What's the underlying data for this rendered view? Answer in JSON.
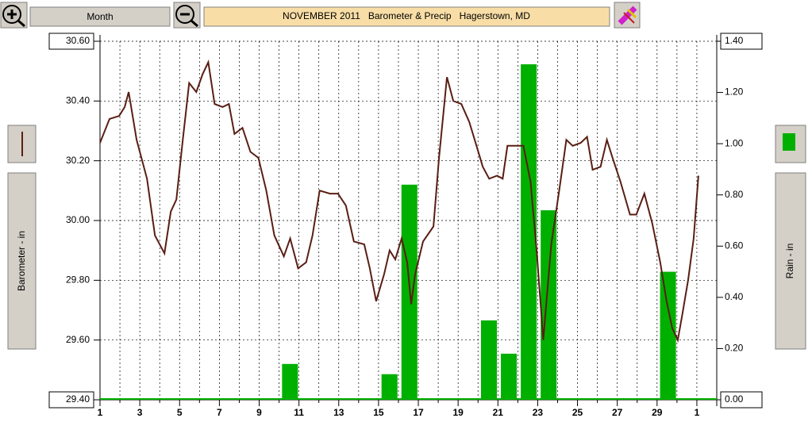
{
  "toolbar": {
    "period_button": "Month"
  },
  "chart_data": {
    "type": "combo",
    "title": "NOVEMBER 2011   Barometer & Precip   Hagerstown, MD",
    "ylabel": "Barometer - in",
    "y2label": "Rain - in",
    "xlim": [
      1,
      32
    ],
    "xticks": [
      1,
      3,
      5,
      7,
      9,
      11,
      13,
      15,
      17,
      19,
      21,
      23,
      25,
      27,
      29,
      {
        "value": 31,
        "label": "1"
      }
    ],
    "xgrid_minor": [
      2,
      4,
      6,
      8,
      10,
      12,
      14,
      16,
      18,
      20,
      22,
      24,
      26,
      28,
      30
    ],
    "ylim": [
      29.4,
      30.6
    ],
    "yticks": [
      {
        "value": 29.4,
        "label": "29.40"
      },
      {
        "value": 29.6,
        "label": "29.60"
      },
      {
        "value": 29.8,
        "label": "29.80"
      },
      {
        "value": 30.0,
        "label": "30.00"
      },
      {
        "value": 30.2,
        "label": "30.20"
      },
      {
        "value": 30.4,
        "label": "30.40"
      },
      {
        "value": 30.6,
        "label": "30.60"
      }
    ],
    "y2lim": [
      0,
      1.4
    ],
    "y2ticks": [
      {
        "value": 0,
        "label": "0.00"
      },
      {
        "value": 0.2,
        "label": "0.20"
      },
      {
        "value": 0.4,
        "label": "0.40"
      },
      {
        "value": 0.6,
        "label": "0.60"
      },
      {
        "value": 0.8,
        "label": "0.80"
      },
      {
        "value": 1.0,
        "label": "1.00"
      },
      {
        "value": 1.2,
        "label": "1.20"
      },
      {
        "value": 1.4,
        "label": "1.40"
      }
    ],
    "grid": true,
    "series": [
      {
        "type": "line",
        "color": "#5a1e14",
        "x": [
          1,
          1.48,
          1.96,
          2.24,
          2.44,
          2.84,
          3.36,
          3.76,
          4.24,
          4.56,
          4.84,
          5.16,
          5.48,
          5.84,
          6.16,
          6.44,
          6.76,
          7.16,
          7.48,
          7.76,
          8.16,
          8.56,
          8.96,
          9.36,
          9.76,
          10.24,
          10.56,
          10.96,
          11.36,
          11.68,
          12.04,
          12.56,
          12.96,
          13.36,
          13.76,
          14.28,
          14.56,
          14.88,
          15.28,
          15.56,
          15.84,
          16.16,
          16.44,
          16.64,
          16.84,
          17.24,
          17.76,
          18.04,
          18.44,
          18.76,
          19.16,
          19.56,
          19.88,
          20.24,
          20.56,
          20.96,
          21.24,
          21.48,
          21.88,
          22.28,
          22.64,
          22.96,
          23.28,
          23.68,
          24.08,
          24.44,
          24.76,
          25.16,
          25.48,
          25.76,
          26.16,
          26.48,
          26.76,
          27.16,
          27.64,
          27.96,
          28.36,
          28.76,
          29.16,
          29.48,
          29.76,
          30.04,
          30.28,
          30.56,
          30.84,
          31.08
        ],
        "values": [
          30.26,
          30.34,
          30.35,
          30.38,
          30.43,
          30.27,
          30.14,
          29.95,
          29.89,
          30.03,
          30.07,
          30.27,
          30.46,
          30.43,
          30.49,
          30.53,
          30.39,
          30.38,
          30.39,
          30.29,
          30.31,
          30.23,
          30.21,
          30.1,
          29.95,
          29.88,
          29.94,
          29.84,
          29.86,
          29.95,
          30.1,
          30.09,
          30.09,
          30.05,
          29.93,
          29.92,
          29.84,
          29.73,
          29.82,
          29.9,
          29.87,
          29.94,
          29.86,
          29.72,
          29.82,
          29.93,
          29.98,
          30.21,
          30.48,
          30.4,
          30.39,
          30.33,
          30.26,
          30.18,
          30.14,
          30.15,
          30.14,
          30.25,
          30.25,
          30.25,
          30.13,
          29.89,
          29.6,
          29.92,
          30.1,
          30.27,
          30.25,
          30.26,
          30.28,
          30.17,
          30.18,
          30.27,
          30.21,
          30.13,
          30.02,
          30.02,
          30.09,
          29.99,
          29.86,
          29.73,
          29.64,
          29.6,
          29.69,
          29.8,
          29.94,
          30.15
        ]
      },
      {
        "type": "bar",
        "axis": "y2",
        "color": "#00b000",
        "x": [
          1,
          2,
          3,
          4,
          5,
          6,
          7,
          8,
          9,
          10,
          11,
          12,
          13,
          14,
          15,
          16,
          17,
          18,
          19,
          20,
          21,
          22,
          23,
          24,
          25,
          26,
          27,
          28,
          29,
          30
        ],
        "values": [
          0,
          0,
          0,
          0,
          0,
          0,
          0,
          0,
          0,
          0.14,
          0,
          0,
          0,
          0,
          0.1,
          0.84,
          0,
          0,
          0,
          0.31,
          0.18,
          1.31,
          0.74,
          0,
          0,
          0,
          0,
          0,
          0.5,
          0
        ]
      }
    ]
  }
}
